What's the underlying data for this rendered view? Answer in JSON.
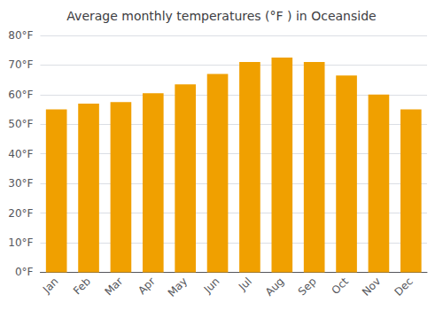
{
  "chart_data": {
    "type": "bar",
    "title": "Average monthly temperatures (°F ) in Oceanside",
    "categories": [
      "Jan",
      "Feb",
      "Mar",
      "Apr",
      "May",
      "Jun",
      "Jul",
      "Aug",
      "Sep",
      "Oct",
      "Nov",
      "Dec"
    ],
    "values": [
      55,
      57,
      57.5,
      60.5,
      63.5,
      67,
      71,
      72.5,
      71,
      66.5,
      60,
      55
    ],
    "color": "#F0A000",
    "ylim": [
      0,
      80
    ],
    "yticks": [
      {
        "value": 0,
        "label": "0°F"
      },
      {
        "value": 10,
        "label": "10°F"
      },
      {
        "value": 20,
        "label": "20°F"
      },
      {
        "value": 30,
        "label": "30°F"
      },
      {
        "value": 40,
        "label": "40°F"
      },
      {
        "value": 50,
        "label": "50°F"
      },
      {
        "value": 60,
        "label": "60°F"
      },
      {
        "value": 70,
        "label": "70°F"
      },
      {
        "value": 80,
        "label": "80°F"
      }
    ],
    "grid": true
  }
}
